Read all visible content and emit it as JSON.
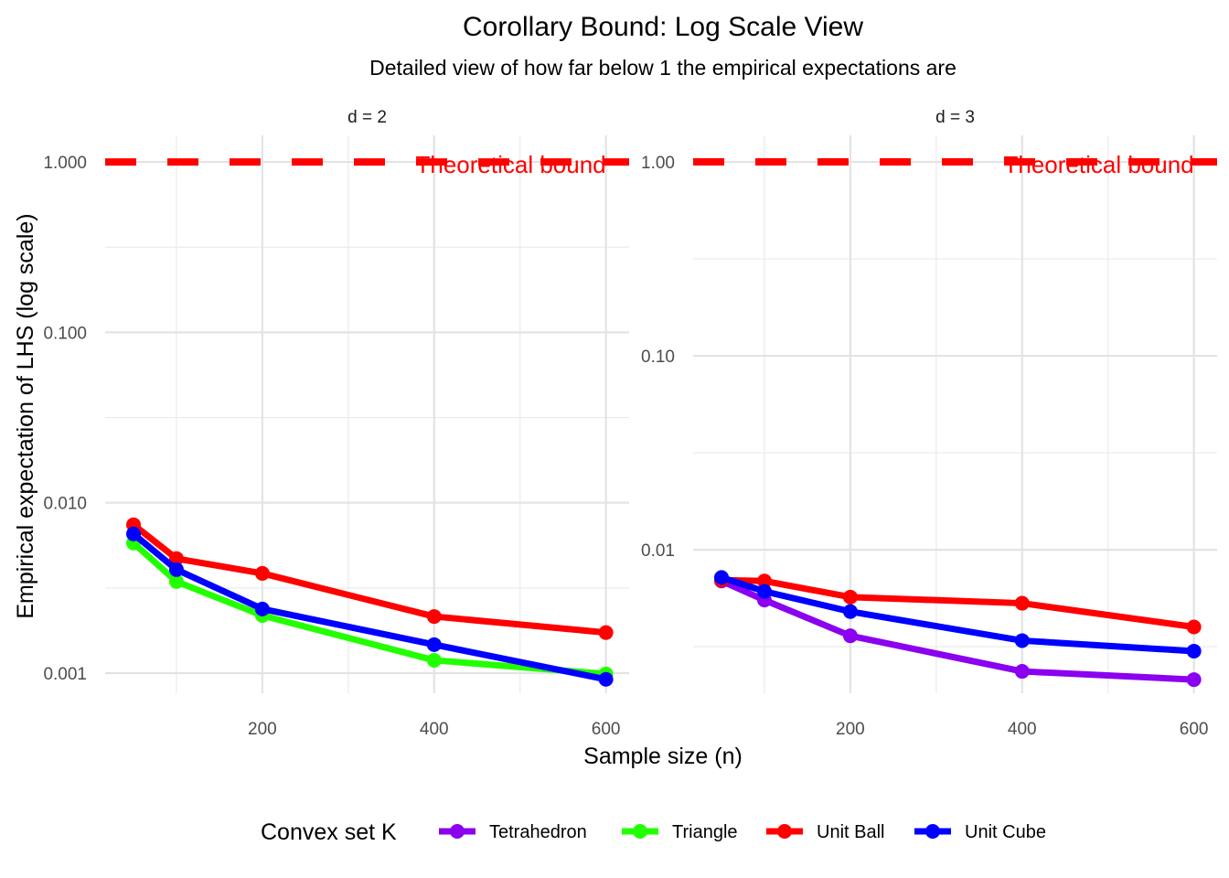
{
  "chart_data": {
    "type": "line",
    "title": "Corollary Bound: Log Scale View",
    "subtitle": "Detailed view of how far below 1 the empirical expectations are",
    "xlabel": "Sample size (n)",
    "ylabel": "Empirical expectation of LHS (log scale)",
    "y_scale": "log",
    "grid": true,
    "x": [
      50,
      100,
      200,
      400,
      600
    ],
    "x_ticks": [
      200,
      400,
      600
    ],
    "xlim": [
      17,
      627
    ],
    "reference_line": {
      "value": 1,
      "label": "Theoretical bound",
      "color": "#FF0000",
      "style": "dashed"
    },
    "legend": {
      "title": "Convex set K",
      "placement": "bottom"
    },
    "series_colors": {
      "Tetrahedron": "#8B00EE",
      "Triangle": "#22FF00",
      "Unit Ball": "#FF0000",
      "Unit Cube": "#0000FF"
    },
    "legend_entries": [
      "Tetrahedron",
      "Triangle",
      "Unit Ball",
      "Unit Cube"
    ],
    "panels": [
      {
        "label": "d = 2",
        "ylim_log10": [
          -3.118,
          0.156
        ],
        "y_ticks": [
          0.001,
          0.01,
          0.1,
          1
        ],
        "y_tick_labels": [
          "0.001",
          "0.010",
          "0.100",
          "1.000"
        ],
        "series": [
          {
            "name": "Triangle",
            "values": [
              0.0058,
              0.00345,
              0.00218,
              0.00119,
              0.00099
            ]
          },
          {
            "name": "Unit Ball",
            "values": [
              0.00743,
              0.0047,
              0.00385,
              0.00215,
              0.00173
            ]
          },
          {
            "name": "Unit Cube",
            "values": [
              0.00656,
              0.00405,
              0.00238,
              0.00147,
              0.00092
            ]
          }
        ]
      },
      {
        "label": "d = 3",
        "ylim_log10": [
          -2.74,
          0.137
        ],
        "y_ticks": [
          0.01,
          0.1,
          1
        ],
        "y_tick_labels": [
          "0.01",
          "0.10",
          "1.00"
        ],
        "series": [
          {
            "name": "Tetrahedron",
            "values": [
              0.0069,
              0.0055,
              0.0036,
              0.00236,
              0.00214
            ]
          },
          {
            "name": "Unit Ball",
            "values": [
              0.00698,
              0.0069,
              0.0057,
              0.0053,
              0.004
            ]
          },
          {
            "name": "Unit Cube",
            "values": [
              0.0072,
              0.0061,
              0.0048,
              0.0034,
              0.003
            ]
          }
        ]
      }
    ]
  }
}
